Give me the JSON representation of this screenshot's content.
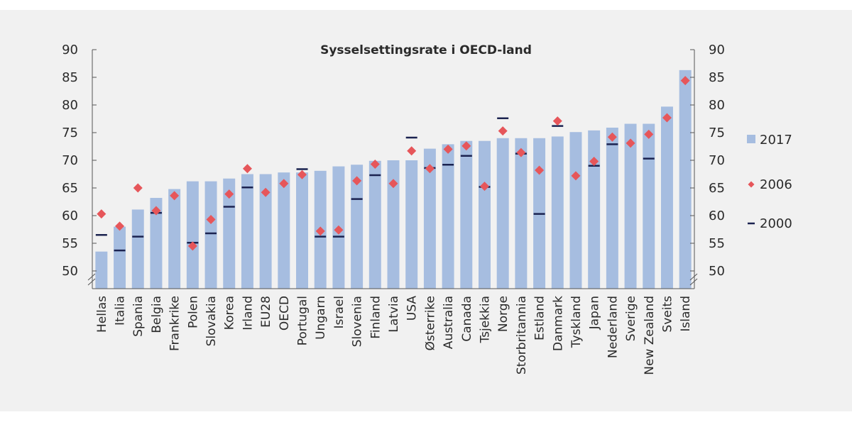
{
  "chart_data": {
    "type": "bar",
    "title": "Sysselsettingsrate i OECD-land",
    "xlabel": "",
    "ylabel": "",
    "ylim": [
      46,
      90
    ],
    "yticks": [
      50,
      55,
      60,
      65,
      70,
      75,
      80,
      85,
      90
    ],
    "axis_break": true,
    "grid": false,
    "legend_position": "right",
    "categories": [
      "Hellas",
      "Italia",
      "Spania",
      "Belgia",
      "Frankrike",
      "Polen",
      "Slovakia",
      "Korea",
      "Irland",
      "EU28",
      "OECD",
      "Portugal",
      "Ungarn",
      "Israel",
      "Slovenia",
      "Finland",
      "Latvia",
      "USA",
      "Østerrike",
      "Australia",
      "Canada",
      "Tsjekkia",
      "Norge",
      "Storbritannia",
      "Estland",
      "Danmark",
      "Tyskland",
      "Japan",
      "Nederland",
      "Sverige",
      "New Zealand",
      "Sveits",
      "Island"
    ],
    "series": [
      {
        "name": "2017",
        "type": "bar",
        "color": "#a6bde0",
        "values": [
          53.5,
          58.0,
          61.1,
          63.2,
          64.8,
          66.2,
          66.2,
          66.7,
          67.5,
          67.5,
          67.8,
          67.8,
          68.1,
          68.9,
          69.2,
          69.9,
          70.0,
          70.0,
          72.1,
          72.9,
          73.5,
          73.5,
          74.0,
          74.0,
          74.0,
          74.3,
          75.1,
          75.4,
          75.9,
          76.6,
          76.6,
          79.7,
          86.3
        ]
      },
      {
        "name": "2006",
        "type": "scatter",
        "marker": "diamond",
        "color": "#e6565a",
        "values": [
          60.3,
          58.1,
          65.0,
          60.9,
          63.6,
          54.5,
          59.3,
          63.9,
          68.5,
          64.2,
          65.8,
          67.4,
          57.2,
          57.4,
          66.3,
          69.3,
          65.8,
          71.7,
          68.5,
          72.0,
          72.6,
          65.3,
          75.3,
          71.4,
          68.2,
          77.1,
          67.2,
          69.8,
          74.2,
          73.1,
          74.7,
          77.7,
          84.4
        ]
      },
      {
        "name": "2000",
        "type": "scatter",
        "marker": "dash",
        "color": "#1b2350",
        "values": [
          56.5,
          53.7,
          56.2,
          60.5,
          null,
          55.1,
          56.8,
          61.6,
          65.1,
          null,
          null,
          68.4,
          56.2,
          56.2,
          63.0,
          67.3,
          null,
          74.1,
          68.6,
          69.2,
          70.8,
          65.2,
          77.6,
          71.2,
          60.3,
          76.2,
          null,
          69.0,
          72.9,
          null,
          70.3,
          null,
          null
        ]
      }
    ]
  }
}
